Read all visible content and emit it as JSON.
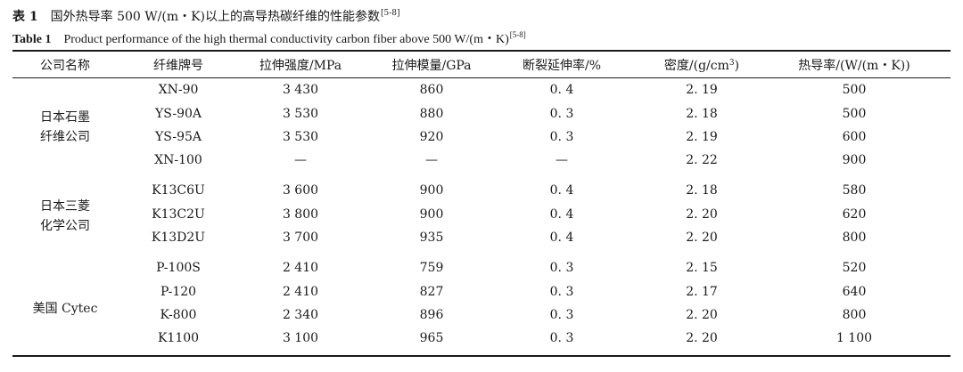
{
  "caption": {
    "zh_label": "表 1",
    "zh_text": "国外热导率 500 W/(m・K)以上的高导热碳纤维的性能参数",
    "zh_ref": "[5-8]",
    "en_label": "Table 1",
    "en_text": "Product performance of the high thermal conductivity carbon fiber above 500 W/(m・K)",
    "en_ref": "[5-8]"
  },
  "headers": {
    "company": "公司名称",
    "grade": "纤维牌号",
    "tensile_strength": "拉伸强度/MPa",
    "tensile_modulus": "拉伸模量/GPa",
    "elongation": "断裂延伸率/%",
    "density_pre": "密度/(g/cm",
    "density_sup": "3",
    "density_post": ")",
    "conductivity": "热导率/(W/(m・K))"
  },
  "companies": [
    {
      "line1": "日本石墨",
      "line2": "纤维公司"
    },
    {
      "line1": "日本三菱",
      "line2": "化学公司"
    },
    {
      "line1": "美国 Cytec",
      "line2": ""
    }
  ],
  "rows": [
    {
      "grade": "XN-90",
      "strength": "3 430",
      "modulus": "860",
      "elong": "0. 4",
      "density": "2. 19",
      "cond": "500"
    },
    {
      "grade": "YS-90A",
      "strength": "3 530",
      "modulus": "880",
      "elong": "0. 3",
      "density": "2. 18",
      "cond": "500"
    },
    {
      "grade": "YS-95A",
      "strength": "3 530",
      "modulus": "920",
      "elong": "0. 3",
      "density": "2. 19",
      "cond": "600"
    },
    {
      "grade": "XN-100",
      "strength": "—",
      "modulus": "—",
      "elong": "—",
      "density": "2. 22",
      "cond": "900"
    },
    {
      "grade": "K13C6U",
      "strength": "3 600",
      "modulus": "900",
      "elong": "0. 4",
      "density": "2. 18",
      "cond": "580"
    },
    {
      "grade": "K13C2U",
      "strength": "3 800",
      "modulus": "900",
      "elong": "0. 4",
      "density": "2. 20",
      "cond": "620"
    },
    {
      "grade": "K13D2U",
      "strength": "3 700",
      "modulus": "935",
      "elong": "0. 4",
      "density": "2. 20",
      "cond": "800"
    },
    {
      "grade": "P-100S",
      "strength": "2 410",
      "modulus": "759",
      "elong": "0. 3",
      "density": "2. 15",
      "cond": "520"
    },
    {
      "grade": "P-120",
      "strength": "2 410",
      "modulus": "827",
      "elong": "0. 3",
      "density": "2. 17",
      "cond": "640"
    },
    {
      "grade": "K-800",
      "strength": "2 340",
      "modulus": "896",
      "elong": "0. 3",
      "density": "2. 20",
      "cond": "800"
    },
    {
      "grade": "K1100",
      "strength": "3 100",
      "modulus": "965",
      "elong": "0. 3",
      "density": "2. 20",
      "cond": "1 100"
    }
  ]
}
